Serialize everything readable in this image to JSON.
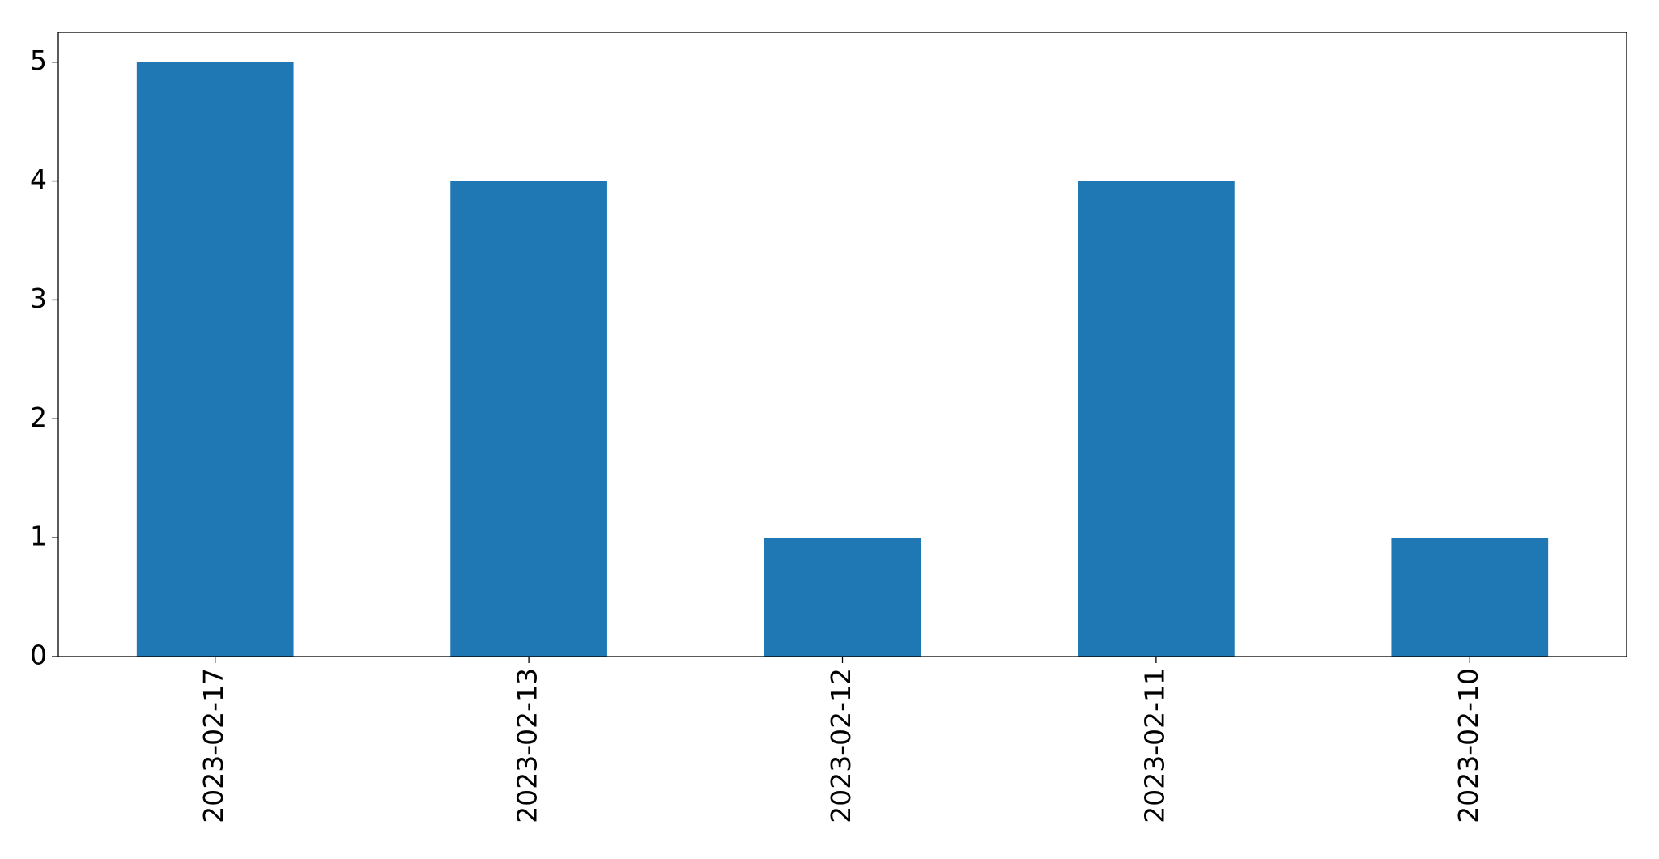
{
  "chart_data": {
    "type": "bar",
    "categories": [
      "2023-02-17",
      "2023-02-13",
      "2023-02-12",
      "2023-02-11",
      "2023-02-10"
    ],
    "values": [
      5,
      4,
      1,
      4,
      1
    ],
    "color": "#1f77b4",
    "ylim": [
      0,
      5.25
    ],
    "yticks": [
      0,
      1,
      2,
      3,
      4,
      5
    ],
    "grid": false
  }
}
